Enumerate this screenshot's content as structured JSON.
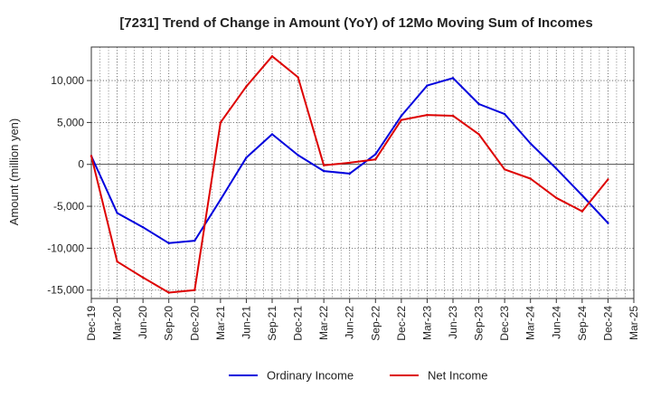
{
  "chart_data": {
    "type": "line",
    "title": "[7231]  Trend of Change in Amount (YoY) of 12Mo Moving Sum of Incomes",
    "xlabel": "",
    "ylabel": "Amount (million yen)",
    "ylim": [
      -16000,
      14000
    ],
    "yticks": [
      -15000,
      -10000,
      -5000,
      0,
      5000,
      10000
    ],
    "ytick_labels": [
      "-15,000",
      "-10,000",
      "-5,000",
      "0",
      "5,000",
      "10,000"
    ],
    "categories": [
      "Dec-19",
      "Mar-20",
      "Jun-20",
      "Sep-20",
      "Dec-20",
      "Mar-21",
      "Jun-21",
      "Sep-21",
      "Dec-21",
      "Mar-22",
      "Jun-22",
      "Sep-22",
      "Dec-22",
      "Mar-23",
      "Jun-23",
      "Sep-23",
      "Dec-23",
      "Mar-24",
      "Jun-24",
      "Sep-24",
      "Dec-24",
      "Mar-25"
    ],
    "grid": true,
    "legend_position": "bottom",
    "series": [
      {
        "name": "Ordinary Income",
        "color": "#0000dd",
        "values": [
          1000,
          -5800,
          -7500,
          -9400,
          -9100,
          -4200,
          800,
          3600,
          1100,
          -800,
          -1100,
          1200,
          5800,
          9400,
          10300,
          7200,
          6000,
          2500,
          -500,
          -3700,
          -7000,
          null
        ]
      },
      {
        "name": "Net Income",
        "color": "#dd0000",
        "values": [
          1000,
          -11600,
          -13500,
          -15300,
          -15000,
          5000,
          9300,
          12900,
          10400,
          -100,
          200,
          600,
          5300,
          5900,
          5800,
          3600,
          -600,
          -1700,
          -4000,
          -5600,
          -1800,
          null
        ]
      }
    ]
  }
}
